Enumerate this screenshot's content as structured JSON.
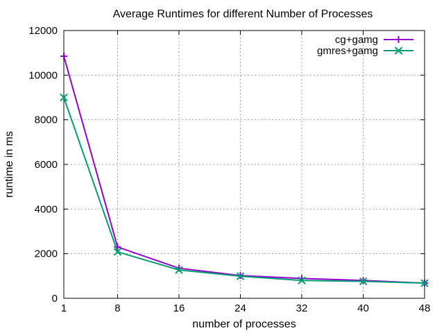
{
  "chart_data": {
    "type": "line",
    "title": "Average Runtimes for different Number of Processes",
    "xlabel": "number of processes",
    "ylabel": "runtime in ms",
    "x": [
      1,
      8,
      16,
      24,
      32,
      40,
      48
    ],
    "xticks": [
      "1",
      "8",
      "16",
      "24",
      "32",
      "40",
      "48"
    ],
    "xlim": [
      1,
      48
    ],
    "ylim": [
      0,
      12000
    ],
    "yticks": [
      "0",
      "2000",
      "4000",
      "6000",
      "8000",
      "10000",
      "12000"
    ],
    "grid": true,
    "legend_position": "top-right",
    "series": [
      {
        "name": "cg+gamg",
        "color": "#9400d3",
        "marker": "plus",
        "values": [
          10850,
          2300,
          1350,
          1020,
          890,
          800,
          680
        ]
      },
      {
        "name": "gmres+gamg",
        "color": "#009e73",
        "marker": "cross",
        "values": [
          9000,
          2080,
          1270,
          990,
          800,
          760,
          680
        ]
      }
    ]
  }
}
